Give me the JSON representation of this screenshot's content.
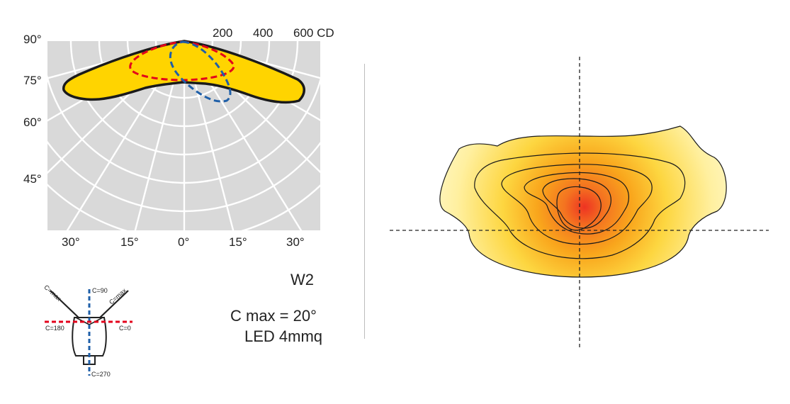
{
  "polar": {
    "left_angles": [
      "90°",
      "75°",
      "60°",
      "45°"
    ],
    "bottom_angles": [
      "30°",
      "15°",
      "0°",
      "15°",
      "30°"
    ],
    "intensity_labels": [
      "200",
      "400",
      "600 CD"
    ]
  },
  "info": {
    "model": "W2",
    "cmax": "C max = 20°",
    "led": "LED 4mmq"
  },
  "fixture": {
    "c_max_left": "C=max",
    "c_max_right": "C=max",
    "c90": "C=90",
    "c180": "C=180",
    "c0": "C=0",
    "c270": "C=270"
  },
  "colors": {
    "panel_bg": "#d9d9d9",
    "fill_yellow": "#ffd400",
    "curve_red": "#e3001b",
    "curve_blue": "#1f5fa8",
    "isolux_outer": "#fff3a8",
    "isolux_core": "#ee3322"
  }
}
